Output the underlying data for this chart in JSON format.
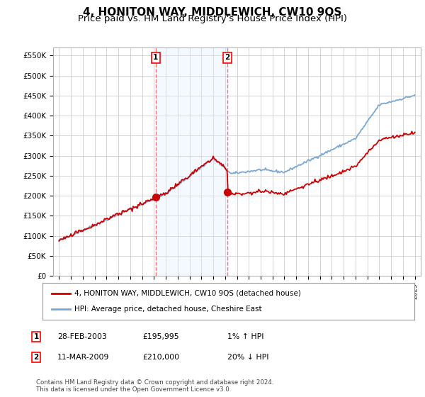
{
  "title": "4, HONITON WAY, MIDDLEWICH, CW10 9QS",
  "subtitle": "Price paid vs. HM Land Registry's House Price Index (HPI)",
  "title_fontsize": 11,
  "subtitle_fontsize": 9.5,
  "ylabel_ticks": [
    "£0",
    "£50K",
    "£100K",
    "£150K",
    "£200K",
    "£250K",
    "£300K",
    "£350K",
    "£400K",
    "£450K",
    "£500K",
    "£550K"
  ],
  "ytick_values": [
    0,
    50000,
    100000,
    150000,
    200000,
    250000,
    300000,
    350000,
    400000,
    450000,
    500000,
    550000
  ],
  "ylim": [
    0,
    570000
  ],
  "xlim_left": 1994.5,
  "xlim_right": 2025.5,
  "background_color": "#ffffff",
  "plot_bg_color": "#ffffff",
  "grid_color": "#cccccc",
  "purchase1_date_x": 2003.15,
  "purchase1_price": 195995,
  "purchase2_date_x": 2009.19,
  "purchase2_price": 210000,
  "legend_line1": "4, HONITON WAY, MIDDLEWICH, CW10 9QS (detached house)",
  "legend_line2": "HPI: Average price, detached house, Cheshire East",
  "table_row1": [
    "1",
    "28-FEB-2003",
    "£195,995",
    "1% ↑ HPI"
  ],
  "table_row2": [
    "2",
    "11-MAR-2009",
    "£210,000",
    "20% ↓ HPI"
  ],
  "footer": "Contains HM Land Registry data © Crown copyright and database right 2024.\nThis data is licensed under the Open Government Licence v3.0.",
  "hpi_color": "#7aa8d2",
  "price_color": "#cc0000",
  "marker_color": "#cc0000",
  "shade_color": "#ddeeff",
  "vline_color": "#ff6666"
}
